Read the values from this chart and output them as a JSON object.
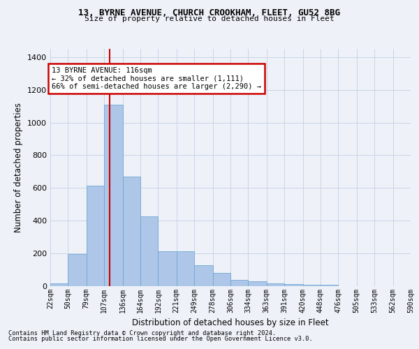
{
  "title1": "13, BYRNE AVENUE, CHURCH CROOKHAM, FLEET, GU52 8BG",
  "title2": "Size of property relative to detached houses in Fleet",
  "xlabel": "Distribution of detached houses by size in Fleet",
  "ylabel": "Number of detached properties",
  "footer1": "Contains HM Land Registry data © Crown copyright and database right 2024.",
  "footer2": "Contains public sector information licensed under the Open Government Licence v3.0.",
  "annotation_title": "13 BYRNE AVENUE: 116sqm",
  "annotation_line1": "← 32% of detached houses are smaller (1,111)",
  "annotation_line2": "66% of semi-detached houses are larger (2,290) →",
  "property_size": 116,
  "bar_color": "#aec6e8",
  "bar_edge_color": "#6fa8d4",
  "vline_color": "#cc0000",
  "annotation_box_color": "#cc0000",
  "annotation_bg": "#ffffff",
  "grid_color": "#c8d4e8",
  "background_color": "#eef2f8",
  "bin_edges": [
    22,
    50,
    79,
    107,
    136,
    164,
    192,
    221,
    249,
    278,
    306,
    334,
    363,
    391,
    420,
    448,
    476,
    505,
    533,
    562,
    590
  ],
  "bin_labels": [
    "22sqm",
    "50sqm",
    "79sqm",
    "107sqm",
    "136sqm",
    "164sqm",
    "192sqm",
    "221sqm",
    "249sqm",
    "278sqm",
    "306sqm",
    "334sqm",
    "363sqm",
    "391sqm",
    "420sqm",
    "448sqm",
    "476sqm",
    "505sqm",
    "533sqm",
    "562sqm",
    "590sqm"
  ],
  "bar_heights": [
    15,
    195,
    615,
    1110,
    670,
    425,
    215,
    215,
    130,
    80,
    40,
    30,
    18,
    12,
    8,
    10,
    0,
    0,
    0,
    0
  ],
  "ylim": [
    0,
    1450
  ],
  "yticks": [
    0,
    200,
    400,
    600,
    800,
    1000,
    1200,
    1400
  ]
}
